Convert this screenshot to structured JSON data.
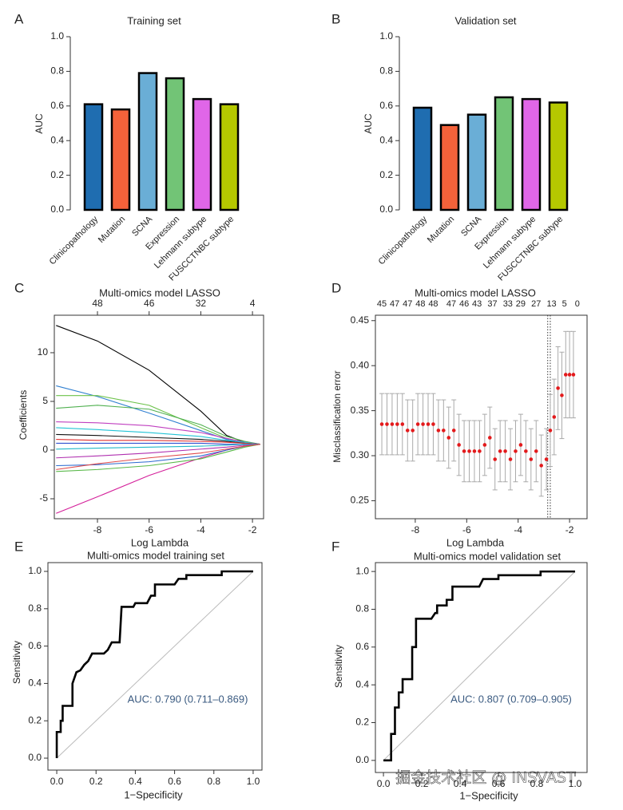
{
  "chart_data": [
    {
      "type": "bar",
      "panel_label": "A",
      "title": "Training set",
      "y_label": "AUC",
      "categories": [
        "Clinicopathology",
        "Mutation",
        "SCNA",
        "Expression",
        "Lehmann subtype",
        "FUSCCTNBC subtype"
      ],
      "values": [
        0.61,
        0.58,
        0.79,
        0.76,
        0.64,
        0.61
      ],
      "colors": [
        "#1f6db0",
        "#f4623a",
        "#6aaed6",
        "#72c476",
        "#e066e8",
        "#b5c800"
      ],
      "ylim": [
        0,
        1
      ],
      "yticks": [
        {
          "value": 0,
          "label": "0.0"
        },
        0.2,
        0.4,
        0.6,
        0.8,
        {
          "value": 1,
          "label": "1.0"
        }
      ]
    },
    {
      "type": "bar",
      "panel_label": "B",
      "title": "Validation set",
      "y_label": "AUC",
      "categories": [
        "Clinicopathology",
        "Mutation",
        "SCNA",
        "Expression",
        "Lehmann subtype",
        "FUSCCTNBC subtype"
      ],
      "values": [
        0.59,
        0.49,
        0.55,
        0.65,
        0.64,
        0.62
      ],
      "colors": [
        "#1f6db0",
        "#f4623a",
        "#6aaed6",
        "#72c476",
        "#e066e8",
        "#b5c800"
      ],
      "ylim": [
        0,
        1
      ],
      "yticks": [
        {
          "value": 0,
          "label": "0.0"
        },
        0.2,
        0.4,
        0.6,
        0.8,
        {
          "value": 1,
          "label": "1.0"
        }
      ]
    },
    {
      "type": "line",
      "panel_label": "C",
      "title": "Multi-omics model LASSO",
      "x_label": "Log Lambda",
      "y_label": "Coefficients",
      "x": [
        -9.6,
        -8,
        -6,
        -4,
        -3,
        -2.3,
        -1.7
      ],
      "series": [
        {
          "color": "#000000",
          "values": [
            12.8,
            11.2,
            8.2,
            4.0,
            1.5,
            0.8,
            0.6
          ]
        },
        {
          "color": "#d4209a",
          "values": [
            -6.5,
            -4.8,
            -2.6,
            -0.8,
            0.0,
            0.4,
            0.6
          ]
        },
        {
          "color": "#2f7fd0",
          "values": [
            6.6,
            5.5,
            3.8,
            2.0,
            1.1,
            0.7,
            0.6
          ]
        },
        {
          "color": "#6cc24a",
          "values": [
            5.6,
            5.6,
            4.6,
            2.3,
            1.2,
            0.8,
            0.6
          ]
        },
        {
          "color": "#4fb04f",
          "values": [
            4.3,
            4.6,
            4.2,
            2.6,
            1.4,
            0.9,
            0.6
          ]
        },
        {
          "color": "#c040c0",
          "values": [
            2.9,
            2.8,
            2.5,
            1.8,
            1.2,
            0.8,
            0.6
          ]
        },
        {
          "color": "#22c3d6",
          "values": [
            2.3,
            2.1,
            1.8,
            1.4,
            1.0,
            0.8,
            0.6
          ]
        },
        {
          "color": "#111111",
          "values": [
            1.6,
            1.5,
            1.3,
            1.1,
            0.9,
            0.7,
            0.6
          ]
        },
        {
          "color": "#e03030",
          "values": [
            1.1,
            1.0,
            1.0,
            0.9,
            0.8,
            0.7,
            0.6
          ]
        },
        {
          "color": "#3050d0",
          "values": [
            0.7,
            0.7,
            0.7,
            0.7,
            0.6,
            0.6,
            0.6
          ]
        },
        {
          "color": "#20b8c8",
          "values": [
            0.1,
            0.2,
            0.3,
            0.4,
            0.5,
            0.6,
            0.6
          ]
        },
        {
          "color": "#b030b0",
          "values": [
            -0.8,
            -0.6,
            -0.3,
            0.1,
            0.3,
            0.5,
            0.6
          ]
        },
        {
          "color": "#2a6ad0",
          "values": [
            -1.6,
            -1.5,
            -1.2,
            -0.6,
            0.0,
            0.4,
            0.6
          ]
        },
        {
          "color": "#58b848",
          "values": [
            -2.2,
            -2.0,
            -1.6,
            -0.9,
            -0.2,
            0.3,
            0.6
          ]
        },
        {
          "color": "#e04a4a",
          "values": [
            -2.0,
            -1.4,
            -0.8,
            -0.3,
            0.1,
            0.4,
            0.6
          ]
        }
      ],
      "xlim": [
        -9.67,
        -1.57
      ],
      "ylim": [
        -7.05,
        13.85
      ],
      "xticks": [
        -8,
        -6,
        -4,
        -2
      ],
      "yticks": [
        -5,
        0,
        5,
        10
      ],
      "x2ticks": [
        {
          "value": -8,
          "label": "48"
        },
        {
          "value": -6,
          "label": "46"
        },
        {
          "value": -4,
          "label": "32"
        },
        {
          "value": -2,
          "label": "4"
        }
      ]
    },
    {
      "type": "errorbar",
      "panel_label": "D",
      "title": "Multi-omics model LASSO",
      "x_label": "Log Lambda",
      "y_label": "Misclassification error",
      "x": [
        -9.3,
        -9.1,
        -8.9,
        -8.7,
        -8.5,
        -8.3,
        -8.1,
        -7.9,
        -7.7,
        -7.5,
        -7.3,
        -7.1,
        -6.9,
        -6.7,
        -6.5,
        -6.3,
        -6.1,
        -5.9,
        -5.7,
        -5.5,
        -5.3,
        -5.1,
        -4.9,
        -4.7,
        -4.5,
        -4.3,
        -4.1,
        -3.9,
        -3.7,
        -3.5,
        -3.3,
        -3.1,
        -2.9,
        -2.75,
        -2.6,
        -2.45,
        -2.3,
        -2.15,
        -2.0,
        -1.85
      ],
      "values": [
        0.335,
        0.335,
        0.335,
        0.335,
        0.335,
        0.328,
        0.328,
        0.335,
        0.335,
        0.335,
        0.335,
        0.328,
        0.328,
        0.32,
        0.328,
        0.312,
        0.305,
        0.305,
        0.305,
        0.305,
        0.312,
        0.32,
        0.296,
        0.305,
        0.305,
        0.296,
        0.305,
        0.312,
        0.305,
        0.296,
        0.305,
        0.289,
        0.296,
        0.328,
        0.343,
        0.375,
        0.367,
        0.39,
        0.39,
        0.39
      ],
      "errors": [
        0.034,
        0.034,
        0.034,
        0.034,
        0.034,
        0.034,
        0.034,
        0.034,
        0.034,
        0.034,
        0.034,
        0.034,
        0.034,
        0.034,
        0.034,
        0.034,
        0.034,
        0.034,
        0.034,
        0.034,
        0.034,
        0.034,
        0.034,
        0.034,
        0.034,
        0.034,
        0.034,
        0.034,
        0.034,
        0.034,
        0.034,
        0.034,
        0.034,
        0.04,
        0.042,
        0.046,
        0.048,
        0.048,
        0.048,
        0.048
      ],
      "color": "#e31a1c",
      "error_color": "#aaaaaa",
      "vlines": [
        -2.85,
        -2.75
      ],
      "xlim": [
        -9.55,
        -1.32
      ],
      "ylim": [
        0.23,
        0.456
      ],
      "xticks": [
        -8,
        -6,
        -4,
        -2
      ],
      "yticks": [
        0.25,
        {
          "value": 0.3,
          "label": "0.30"
        },
        0.35,
        {
          "value": 0.4,
          "label": "0.40"
        },
        0.45
      ],
      "x2ticks": [
        {
          "value": -9.3,
          "label": "45"
        },
        {
          "value": -8.8,
          "label": "47"
        },
        {
          "value": -8.3,
          "label": "47"
        },
        {
          "value": -7.8,
          "label": "48"
        },
        {
          "value": -7.3,
          "label": "48"
        },
        {
          "value": -6.6,
          "label": "47"
        },
        {
          "value": -6.1,
          "label": "46"
        },
        {
          "value": -5.6,
          "label": "43"
        },
        {
          "value": -5.0,
          "label": "37"
        },
        {
          "value": -4.4,
          "label": "33"
        },
        {
          "value": -3.9,
          "label": "29"
        },
        {
          "value": -3.3,
          "label": "27"
        },
        {
          "value": -2.7,
          "label": "13"
        },
        {
          "value": -2.2,
          "label": "5"
        },
        {
          "value": -1.7,
          "label": "0"
        }
      ]
    },
    {
      "type": "roc",
      "panel_label": "E",
      "title": "Multi-omics model training set",
      "x_label": "1−Specificity",
      "y_label": "Sensitivity",
      "annotation": "AUC: 0.790 (0.711–0.869)",
      "x": [
        0,
        0,
        0.02,
        0.02,
        0.03,
        0.03,
        0.08,
        0.08,
        0.09,
        0.1,
        0.12,
        0.14,
        0.16,
        0.18,
        0.24,
        0.26,
        0.28,
        0.32,
        0.33,
        0.39,
        0.4,
        0.46,
        0.48,
        0.5,
        0.5,
        0.6,
        0.62,
        0.66,
        0.66,
        0.84,
        0.84,
        1.0
      ],
      "series": [
        {
          "color": "#000000",
          "values": [
            0,
            0.14,
            0.14,
            0.2,
            0.2,
            0.28,
            0.28,
            0.4,
            0.43,
            0.46,
            0.47,
            0.5,
            0.52,
            0.56,
            0.56,
            0.58,
            0.62,
            0.62,
            0.81,
            0.81,
            0.83,
            0.83,
            0.87,
            0.87,
            0.93,
            0.93,
            0.96,
            0.96,
            0.98,
            0.98,
            1.0,
            1.0
          ]
        }
      ],
      "xlim": [
        -0.045,
        1.045
      ],
      "ylim": [
        -0.064,
        1.047
      ],
      "xticks": [
        {
          "value": 0,
          "label": "0.0"
        },
        0.2,
        0.4,
        0.6,
        0.8,
        {
          "value": 1,
          "label": "1.0"
        }
      ],
      "yticks": [
        {
          "value": 0,
          "label": "0.0"
        },
        0.2,
        0.4,
        0.6,
        0.8,
        {
          "value": 1,
          "label": "1.0"
        }
      ]
    },
    {
      "type": "roc",
      "panel_label": "F",
      "title": "Multi-omics model validation set",
      "x_label": "1−Specificity",
      "y_label": "Sensitivity",
      "annotation": "AUC: 0.807 (0.709–0.905)",
      "watermark": "掘金技术社区 @ INSVAST",
      "x": [
        0,
        0.04,
        0.04,
        0.06,
        0.06,
        0.08,
        0.08,
        0.1,
        0.1,
        0.15,
        0.15,
        0.17,
        0.17,
        0.25,
        0.27,
        0.28,
        0.28,
        0.33,
        0.33,
        0.36,
        0.36,
        0.5,
        0.52,
        0.6,
        0.6,
        0.82,
        0.82,
        1.0
      ],
      "series": [
        {
          "color": "#000000",
          "values": [
            0,
            0,
            0.14,
            0.14,
            0.28,
            0.28,
            0.36,
            0.36,
            0.43,
            0.43,
            0.6,
            0.6,
            0.75,
            0.75,
            0.78,
            0.78,
            0.82,
            0.82,
            0.85,
            0.85,
            0.92,
            0.92,
            0.96,
            0.96,
            0.98,
            0.98,
            1.0,
            1.0
          ]
        }
      ],
      "xlim": [
        -0.042,
        1.0625
      ],
      "ylim": [
        -0.064,
        1.047
      ],
      "xticks": [
        {
          "value": 0,
          "label": "0.0"
        },
        0.2,
        0.4,
        0.6,
        0.8,
        {
          "value": 1,
          "label": "1.0"
        }
      ],
      "yticks": [
        {
          "value": 0,
          "label": "0.0"
        },
        0.2,
        0.4,
        0.6,
        0.8,
        {
          "value": 1,
          "label": "1.0"
        }
      ]
    }
  ]
}
